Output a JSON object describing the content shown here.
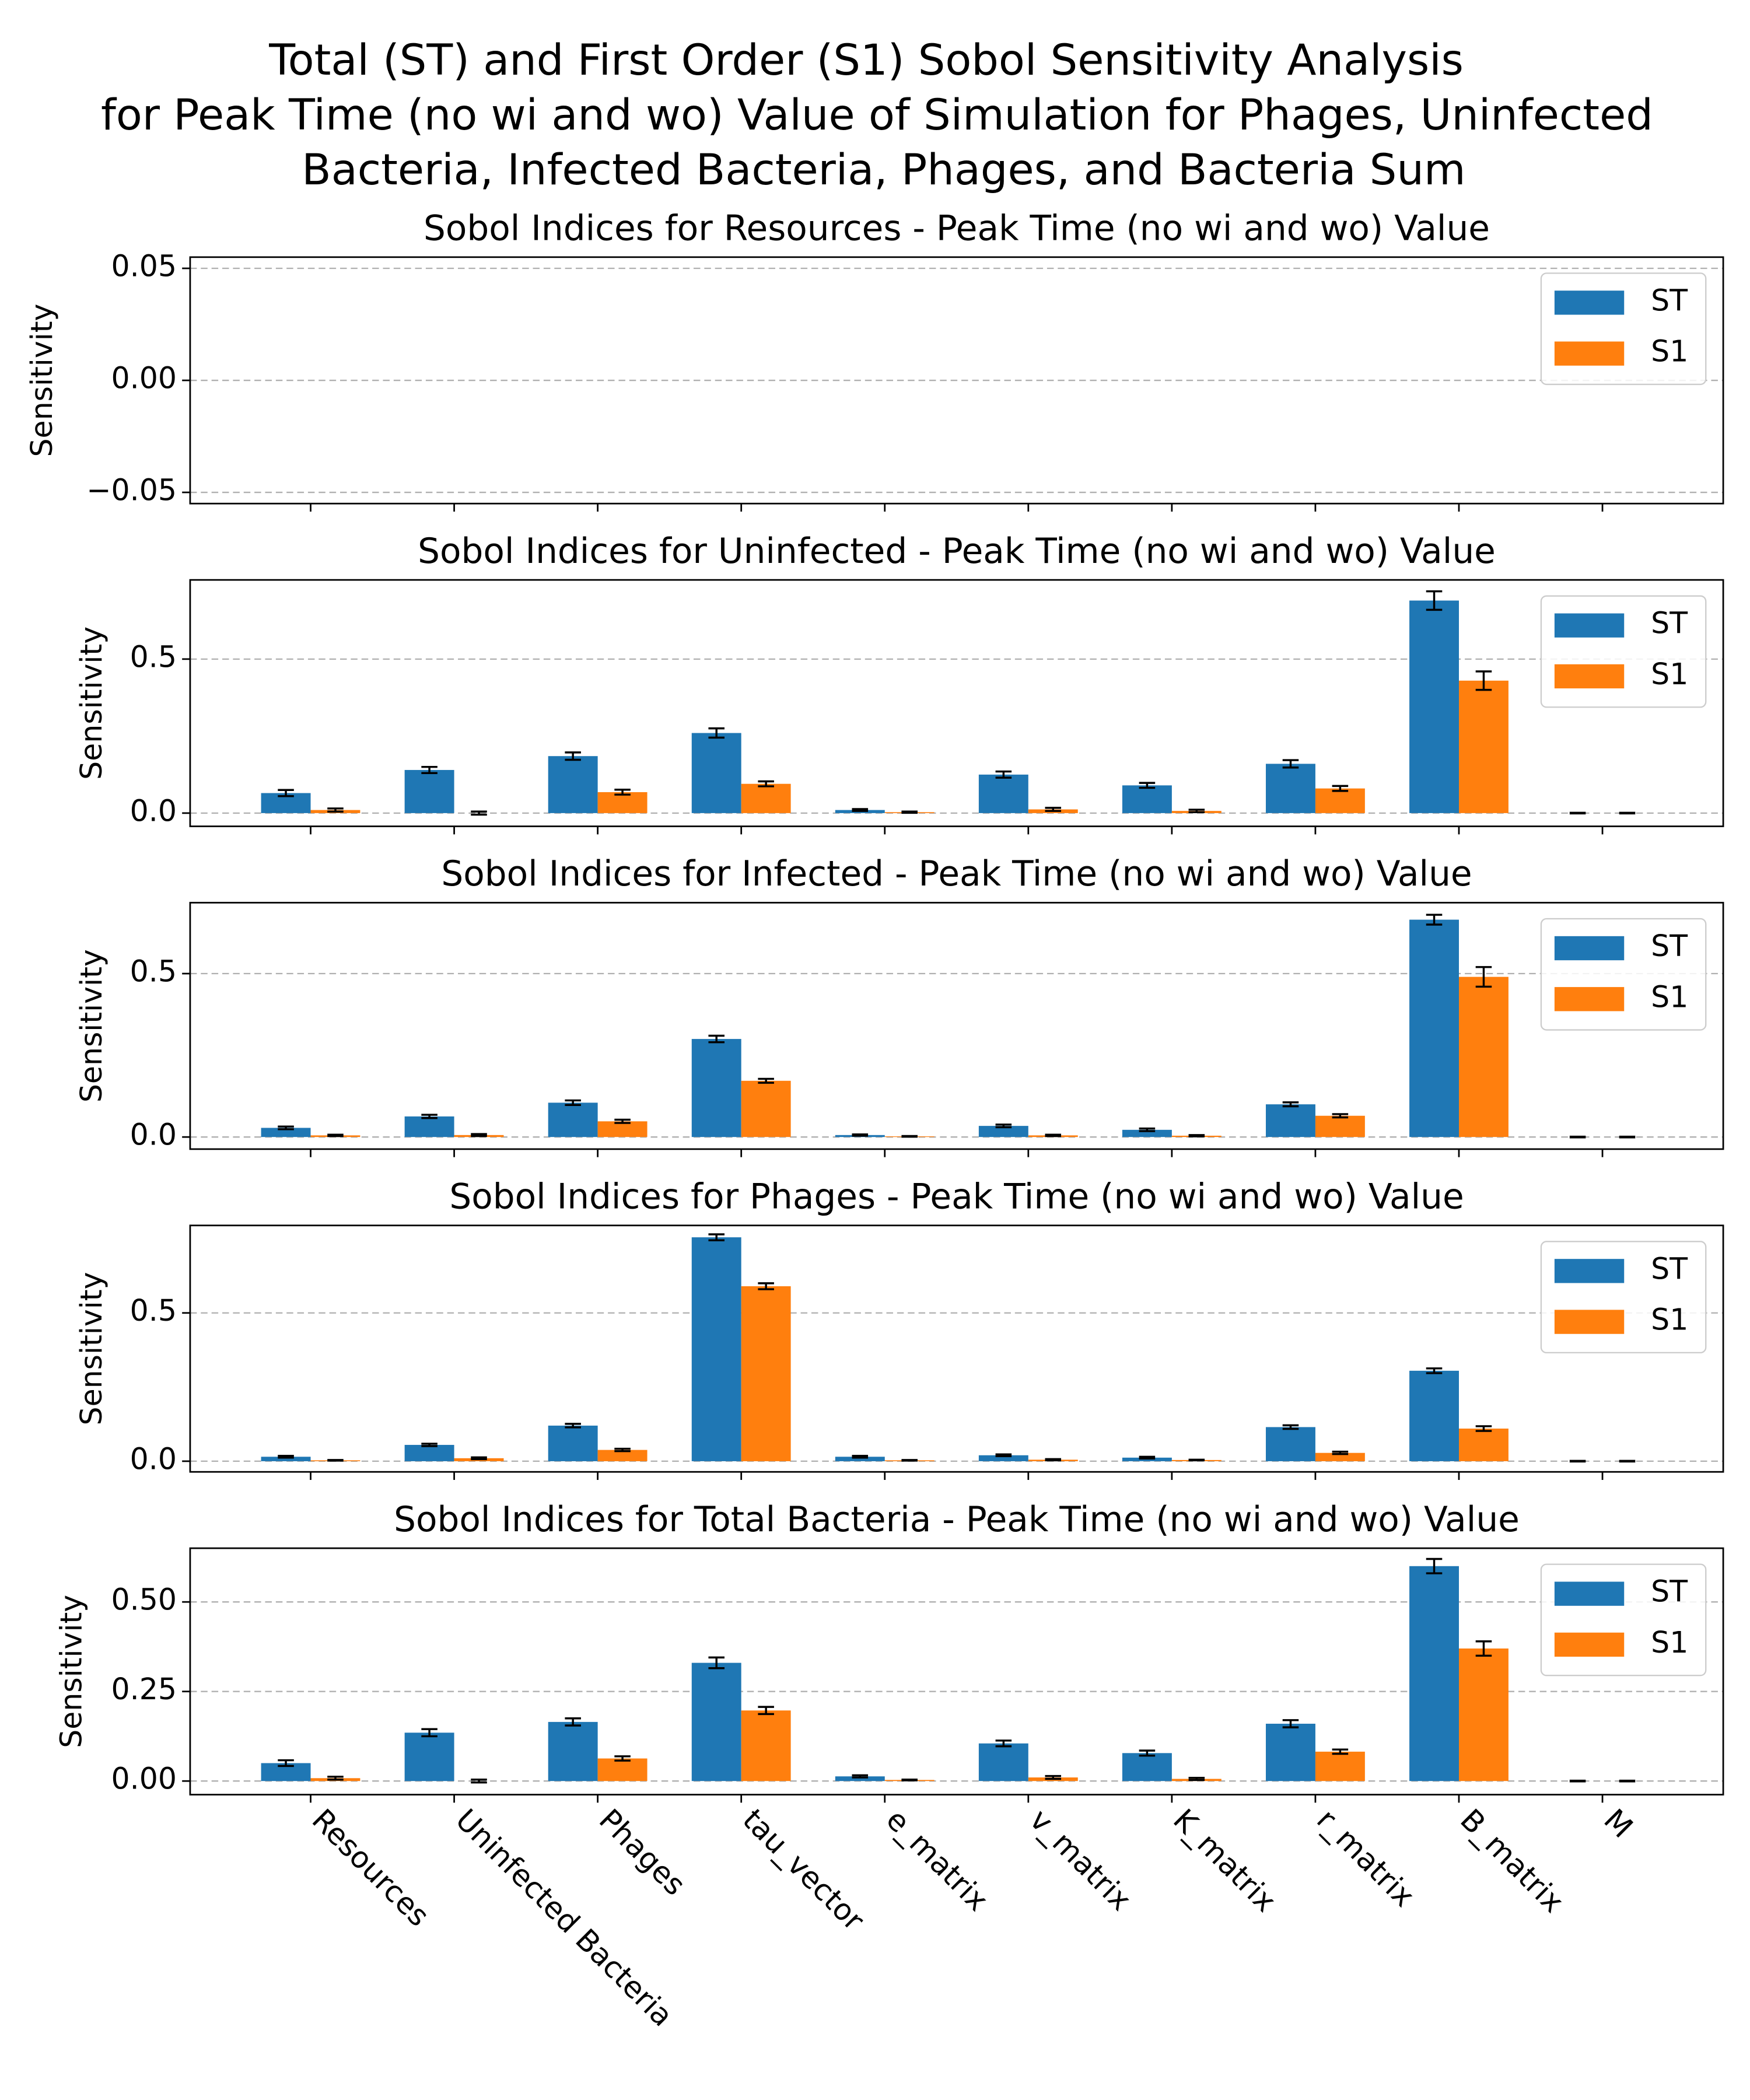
{
  "suptitle": [
    "Total (ST) and First Order (S1) Sobol Sensitivity Analysis",
    "for Peak Time (no wi and wo) Value of Simulation for Phages, Uninfected",
    "Bacteria, Infected Bacteria, Phages, and Bacteria Sum"
  ],
  "chart_data": [
    {
      "type": "bar",
      "title": "Sobol Indices for Resources - Peak Time (no wi and wo) Value",
      "ylabel": "Sensitivity",
      "categories": [
        "Resources",
        "Uninfected Bacteria",
        "Phages",
        "tau_vector",
        "e_matrix",
        "v_matrix",
        "K_matrix",
        "r_matrix",
        "B_matrix",
        "M"
      ],
      "series": [
        {
          "name": "ST",
          "color": "#1f77b4",
          "values": [
            null,
            null,
            null,
            null,
            null,
            null,
            null,
            null,
            null,
            null
          ],
          "errors": [
            null,
            null,
            null,
            null,
            null,
            null,
            null,
            null,
            null,
            null
          ]
        },
        {
          "name": "S1",
          "color": "#ff7f0e",
          "values": [
            null,
            null,
            null,
            null,
            null,
            null,
            null,
            null,
            null,
            null
          ],
          "errors": [
            null,
            null,
            null,
            null,
            null,
            null,
            null,
            null,
            null,
            null
          ]
        }
      ],
      "ylim": [
        -0.055,
        0.055
      ],
      "yticks": [
        {
          "value": -0.05,
          "label": "−0.05"
        },
        {
          "value": 0,
          "label": "0.00"
        },
        {
          "value": 0.05,
          "label": "0.05"
        }
      ],
      "grid": true,
      "legend": "upper right"
    },
    {
      "type": "bar",
      "title": "Sobol Indices for Uninfected - Peak Time (no wi and wo) Value",
      "ylabel": "Sensitivity",
      "categories": [
        "Resources",
        "Uninfected Bacteria",
        "Phages",
        "tau_vector",
        "e_matrix",
        "v_matrix",
        "K_matrix",
        "r_matrix",
        "B_matrix",
        "M"
      ],
      "series": [
        {
          "name": "ST",
          "color": "#1f77b4",
          "values": [
            0.065,
            0.14,
            0.185,
            0.26,
            0.01,
            0.125,
            0.09,
            0.16,
            0.69,
            0
          ],
          "errors": [
            0.01,
            0.01,
            0.012,
            0.015,
            0.003,
            0.01,
            0.008,
            0.012,
            0.03,
            0.001
          ]
        },
        {
          "name": "S1",
          "color": "#ff7f0e",
          "values": [
            0.01,
            0,
            0.068,
            0.095,
            0.003,
            0.012,
            0.007,
            0.08,
            0.43,
            0
          ],
          "errors": [
            0.005,
            0.005,
            0.008,
            0.008,
            0.002,
            0.005,
            0.004,
            0.008,
            0.03,
            0.001
          ]
        }
      ],
      "ylim": [
        -0.043,
        0.757
      ],
      "yticks": [
        {
          "value": 0,
          "label": "0.0"
        },
        {
          "value": 0.5,
          "label": "0.5"
        }
      ],
      "grid": true,
      "legend": "upper right"
    },
    {
      "type": "bar",
      "title": "Sobol Indices for Infected - Peak Time (no wi and wo) Value",
      "ylabel": "Sensitivity",
      "categories": [
        "Resources",
        "Uninfected Bacteria",
        "Phages",
        "tau_vector",
        "e_matrix",
        "v_matrix",
        "K_matrix",
        "r_matrix",
        "B_matrix",
        "M"
      ],
      "series": [
        {
          "name": "ST",
          "color": "#1f77b4",
          "values": [
            0.028,
            0.063,
            0.105,
            0.3,
            0.006,
            0.034,
            0.022,
            0.1,
            0.665,
            0
          ],
          "errors": [
            0.004,
            0.005,
            0.007,
            0.01,
            0.002,
            0.004,
            0.004,
            0.006,
            0.015,
            0.001
          ]
        },
        {
          "name": "S1",
          "color": "#ff7f0e",
          "values": [
            0.005,
            0.006,
            0.048,
            0.172,
            0.002,
            0.005,
            0.004,
            0.065,
            0.49,
            0
          ],
          "errors": [
            0.002,
            0.003,
            0.005,
            0.006,
            0.001,
            0.002,
            0.002,
            0.005,
            0.03,
            0.001
          ]
        }
      ],
      "ylim": [
        -0.037,
        0.717
      ],
      "yticks": [
        {
          "value": 0,
          "label": "0.0"
        },
        {
          "value": 0.5,
          "label": "0.5"
        }
      ],
      "grid": true,
      "legend": "upper right"
    },
    {
      "type": "bar",
      "title": "Sobol Indices for Phages - Peak Time (no wi and wo) Value",
      "ylabel": "Sensitivity",
      "categories": [
        "Resources",
        "Uninfected Bacteria",
        "Phages",
        "tau_vector",
        "e_matrix",
        "v_matrix",
        "K_matrix",
        "r_matrix",
        "B_matrix",
        "M"
      ],
      "series": [
        {
          "name": "ST",
          "color": "#1f77b4",
          "values": [
            0.015,
            0.055,
            0.12,
            0.755,
            0.015,
            0.02,
            0.012,
            0.115,
            0.305,
            0
          ],
          "errors": [
            0.003,
            0.004,
            0.006,
            0.01,
            0.003,
            0.003,
            0.003,
            0.006,
            0.008,
            0.001
          ]
        },
        {
          "name": "S1",
          "color": "#ff7f0e",
          "values": [
            0.003,
            0.01,
            0.038,
            0.59,
            0.003,
            0.005,
            0.004,
            0.028,
            0.11,
            0
          ],
          "errors": [
            0.001,
            0.003,
            0.004,
            0.01,
            0.001,
            0.002,
            0.001,
            0.004,
            0.008,
            0.001
          ]
        }
      ],
      "ylim": [
        -0.036,
        0.795
      ],
      "yticks": [
        {
          "value": 0,
          "label": "0.0"
        },
        {
          "value": 0.5,
          "label": "0.5"
        }
      ],
      "grid": true,
      "legend": "upper right"
    },
    {
      "type": "bar",
      "title": "Sobol Indices for Total Bacteria - Peak Time (no wi and wo) Value",
      "ylabel": "Sensitivity",
      "categories": [
        "Resources",
        "Uninfected Bacteria",
        "Phages",
        "tau_vector",
        "e_matrix",
        "v_matrix",
        "K_matrix",
        "r_matrix",
        "B_matrix",
        "M"
      ],
      "series": [
        {
          "name": "ST",
          "color": "#1f77b4",
          "values": [
            0.05,
            0.135,
            0.165,
            0.33,
            0.013,
            0.105,
            0.078,
            0.16,
            0.6,
            0
          ],
          "errors": [
            0.008,
            0.01,
            0.01,
            0.015,
            0.003,
            0.008,
            0.007,
            0.01,
            0.02,
            0.001
          ]
        },
        {
          "name": "S1",
          "color": "#ff7f0e",
          "values": [
            0.008,
            0,
            0.063,
            0.197,
            0.003,
            0.01,
            0.006,
            0.082,
            0.37,
            0
          ],
          "errors": [
            0.004,
            0.004,
            0.006,
            0.01,
            0.001,
            0.004,
            0.003,
            0.006,
            0.02,
            0.001
          ]
        }
      ],
      "ylim": [
        -0.038,
        0.65
      ],
      "yticks": [
        {
          "value": 0,
          "label": "0.00"
        },
        {
          "value": 0.25,
          "label": "0.25"
        },
        {
          "value": 0.5,
          "label": "0.50"
        }
      ],
      "grid": true,
      "legend": "upper right"
    }
  ]
}
